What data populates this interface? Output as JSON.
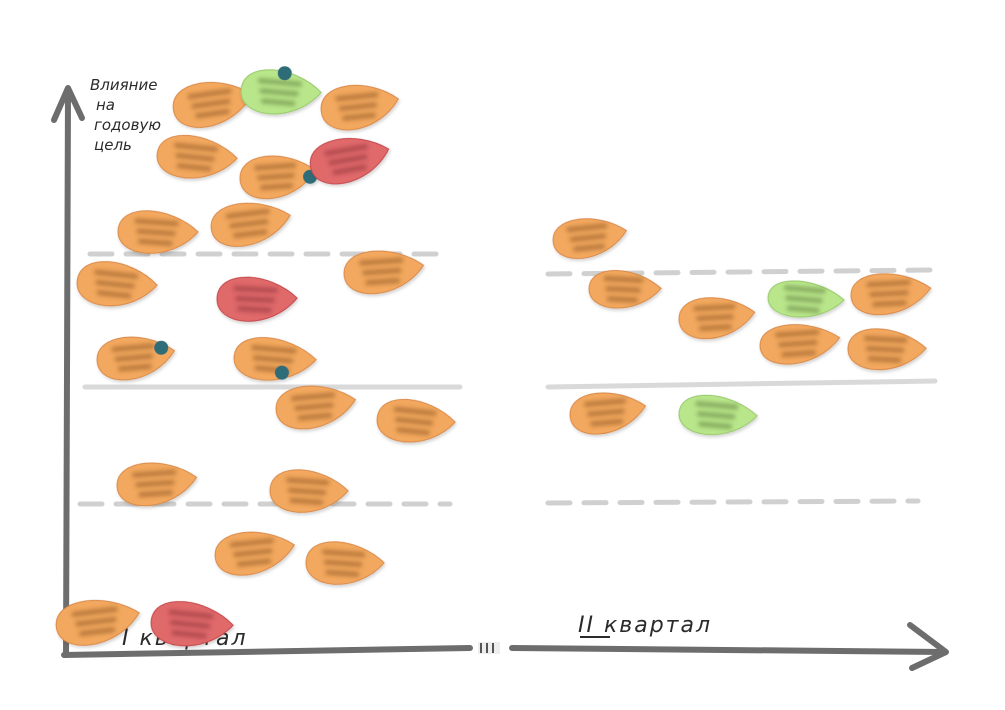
{
  "title": "",
  "axis": {
    "y_label_lines": [
      "Влияние",
      "на",
      "годовую",
      "цель"
    ]
  },
  "quarters": [
    {
      "label": "I квартал"
    },
    {
      "label": "II квартал"
    }
  ],
  "colors": {
    "axis": "#6d6d6d",
    "divider_solid": "#d9d9d9",
    "divider_dashed": "#d0d0d0",
    "orange": "#f2a85e",
    "orange_edge": "#d9894a",
    "green": "#b9e68a",
    "green_edge": "#96c96a",
    "red": "#e0696b",
    "red_edge": "#c4494c",
    "pin": "#2e6c78"
  },
  "note_colors_legend": [
    "orange",
    "green",
    "red"
  ]
}
